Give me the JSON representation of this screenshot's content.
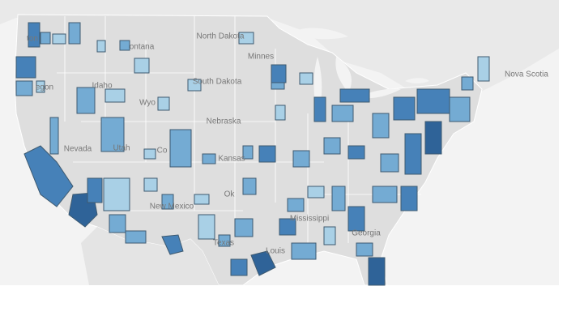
{
  "state_labels": [
    "ton",
    "ontana",
    "North Dakota",
    "Minnes",
    "South Dakota",
    "egon",
    "Idaho",
    "Wyo",
    "Nebraska",
    "Nevada",
    "Utah",
    "Co",
    "Kansas",
    "Ok",
    "New Mexico",
    "Texas",
    "Mississippi",
    "Louis",
    "Georgia",
    "Nova Scotia"
  ]
}
